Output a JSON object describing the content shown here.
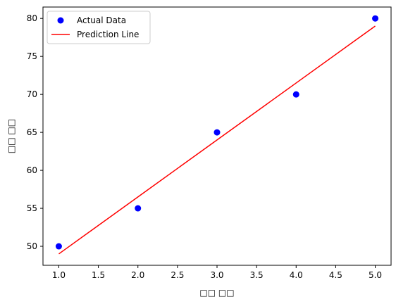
{
  "chart_data": {
    "type": "scatter",
    "xlabel": "□□ □□",
    "ylabel": "□□ □□",
    "xlim": [
      0.8,
      5.2
    ],
    "ylim": [
      47.5,
      81.5
    ],
    "xticks": [
      "1.0",
      "1.5",
      "2.0",
      "2.5",
      "3.0",
      "3.5",
      "4.0",
      "4.5",
      "5.0"
    ],
    "yticks": [
      "50",
      "55",
      "60",
      "65",
      "70",
      "75",
      "80"
    ],
    "grid": false,
    "legend_position": "upper-left",
    "series": [
      {
        "name": "Actual Data",
        "kind": "scatter",
        "color": "#0000ff",
        "x": [
          1,
          2,
          3,
          4,
          5
        ],
        "y": [
          50,
          55,
          65,
          70,
          80
        ]
      },
      {
        "name": "Prediction Line",
        "kind": "line",
        "color": "#ff0000",
        "x": [
          1,
          2,
          3,
          4,
          5
        ],
        "y": [
          49,
          56.5,
          64,
          71.5,
          79
        ]
      }
    ]
  }
}
